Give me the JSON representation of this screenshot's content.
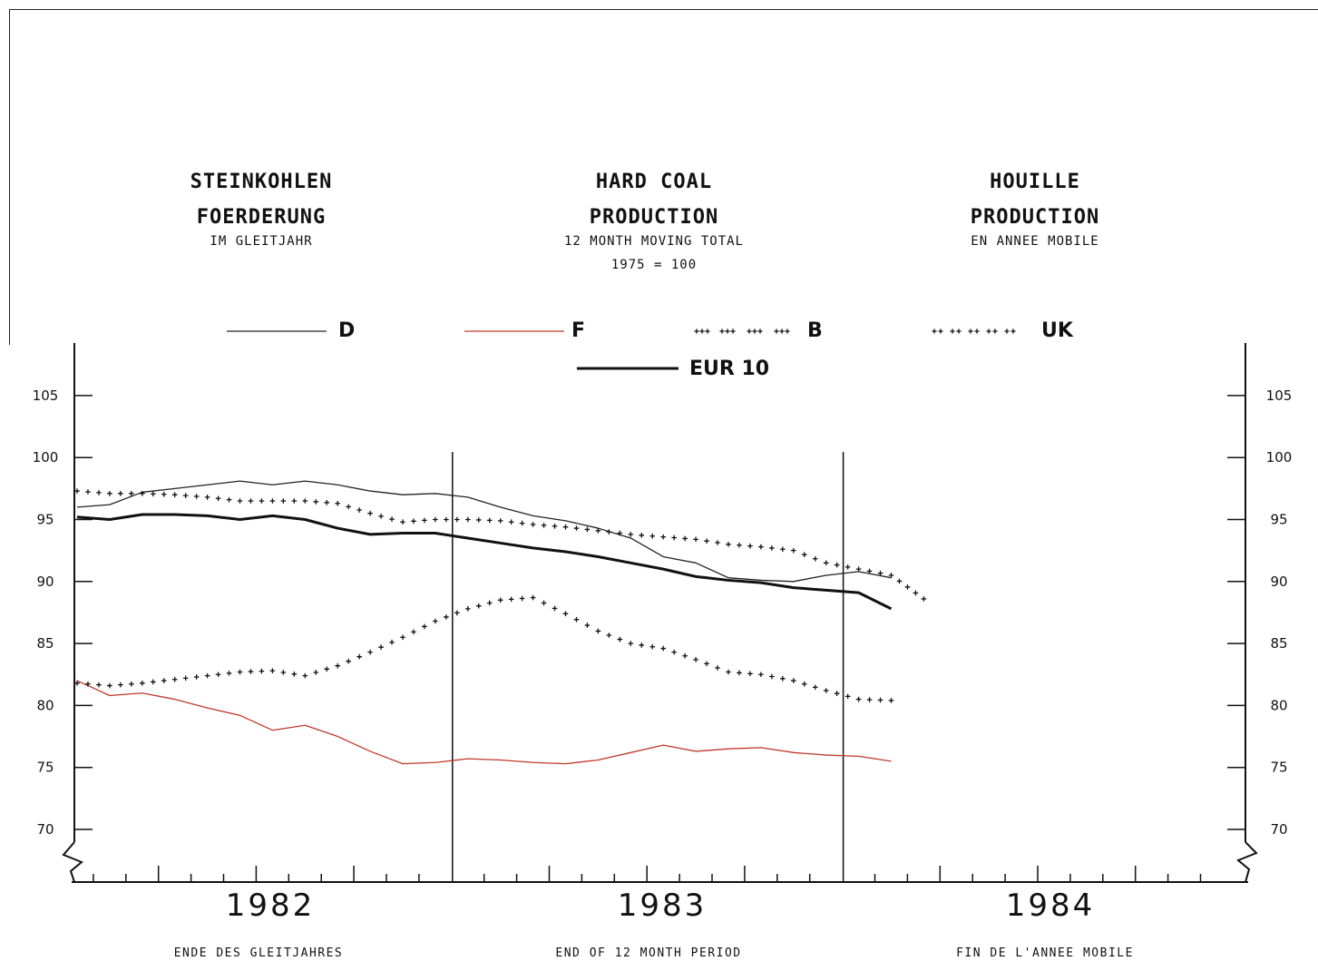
{
  "titles": {
    "de": {
      "line1": "STEINKOHLEN",
      "line2": "FOERDERUNG",
      "sub": "IM GLEITJAHR"
    },
    "en": {
      "line1": "HARD COAL",
      "line2": "PRODUCTION",
      "sub": "12 MONTH MOVING TOTAL",
      "base": "1975 = 100"
    },
    "fr": {
      "line1": "HOUILLE",
      "line2": "PRODUCTION",
      "sub": "EN ANNEE MOBILE"
    }
  },
  "footer": {
    "de": "ENDE DES GLEITJAHRES",
    "en": "END OF 12 MONTH PERIOD",
    "fr": "FIN DE L'ANNEE MOBILE"
  },
  "colors": {
    "axis": "#111111",
    "D": "#222222",
    "F": "#c0392b",
    "B": "#111111",
    "UK": "#111111",
    "EUR10": "#111111"
  },
  "chart_data": {
    "type": "line",
    "x_unit": "month",
    "x": [
      "1982-01",
      "1982-02",
      "1982-03",
      "1982-04",
      "1982-05",
      "1982-06",
      "1982-07",
      "1982-08",
      "1982-09",
      "1982-10",
      "1982-11",
      "1982-12",
      "1983-01",
      "1983-02",
      "1983-03",
      "1983-04",
      "1983-05",
      "1983-06",
      "1983-07",
      "1983-08",
      "1983-09",
      "1983-10",
      "1983-11",
      "1983-12",
      "1984-01",
      "1984-02",
      "1984-03"
    ],
    "categories": [
      "1982",
      "1983",
      "1984"
    ],
    "ylim": [
      70,
      105
    ],
    "yticks": [
      70,
      75,
      80,
      85,
      90,
      95,
      100,
      105
    ],
    "series": [
      {
        "name": "D",
        "style": "thin",
        "values": [
          96.0,
          96.2,
          97.2,
          97.5,
          97.8,
          98.1,
          97.8,
          98.1,
          97.8,
          97.3,
          97.0,
          97.1,
          96.8,
          96.0,
          95.3,
          94.9,
          94.3,
          93.5,
          92.0,
          91.5,
          90.3,
          90.1,
          90.0,
          90.5,
          90.8,
          90.3,
          null
        ]
      },
      {
        "name": "F",
        "style": "red",
        "values": [
          82.0,
          80.8,
          81.0,
          80.5,
          79.8,
          79.2,
          78.0,
          78.4,
          77.5,
          76.3,
          75.3,
          75.4,
          75.7,
          75.6,
          75.4,
          75.3,
          75.6,
          76.2,
          76.8,
          76.3,
          76.5,
          76.6,
          76.2,
          76.0,
          75.9,
          75.5,
          null
        ]
      },
      {
        "name": "B",
        "style": "plus-dense",
        "values": [
          97.3,
          97.1,
          97.1,
          97.0,
          96.8,
          96.5,
          96.5,
          96.5,
          96.3,
          95.5,
          94.8,
          95.0,
          95.0,
          94.9,
          94.6,
          94.4,
          94.1,
          93.8,
          93.6,
          93.4,
          93.0,
          92.8,
          92.5,
          91.5,
          91.0,
          90.5,
          88.6
        ]
      },
      {
        "name": "UK",
        "style": "plus-spaced",
        "values": [
          81.8,
          81.6,
          81.8,
          82.1,
          82.4,
          82.7,
          82.8,
          82.4,
          83.2,
          84.3,
          85.5,
          86.8,
          87.8,
          88.5,
          88.7,
          87.4,
          86.0,
          85.0,
          84.6,
          83.7,
          82.7,
          82.5,
          82.0,
          81.2,
          80.5,
          80.4,
          null
        ]
      },
      {
        "name": "EUR 10",
        "style": "thick",
        "values": [
          95.2,
          95.0,
          95.4,
          95.4,
          95.3,
          95.0,
          95.3,
          95.0,
          94.3,
          93.8,
          93.9,
          93.9,
          93.5,
          93.1,
          92.7,
          92.4,
          92.0,
          91.5,
          91.0,
          90.4,
          90.1,
          89.9,
          89.5,
          89.3,
          89.1,
          87.8,
          null
        ]
      }
    ]
  }
}
